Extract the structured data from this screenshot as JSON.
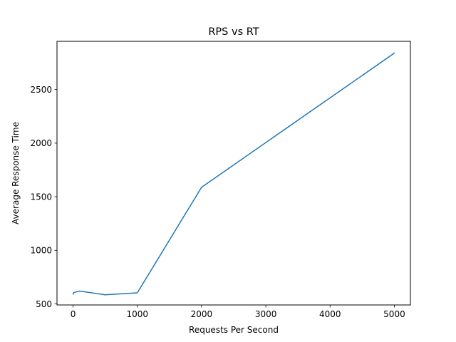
{
  "chart_data": {
    "type": "line",
    "title": "RPS vs RT",
    "xlabel": "Requests Per Second",
    "ylabel": "Average Response Time",
    "xlim": [
      -250,
      5250
    ],
    "ylim": [
      490,
      2950
    ],
    "xticks": [
      0,
      1000,
      2000,
      3000,
      4000,
      5000
    ],
    "yticks": [
      500,
      1000,
      1500,
      2000,
      2500
    ],
    "grid": false,
    "legend": "none",
    "series": [
      {
        "color": "#1f77b4",
        "x": [
          1,
          10,
          100,
          500,
          1000,
          2000,
          5000
        ],
        "y": [
          592,
          605,
          620,
          585,
          603,
          1588,
          2840
        ]
      }
    ]
  }
}
